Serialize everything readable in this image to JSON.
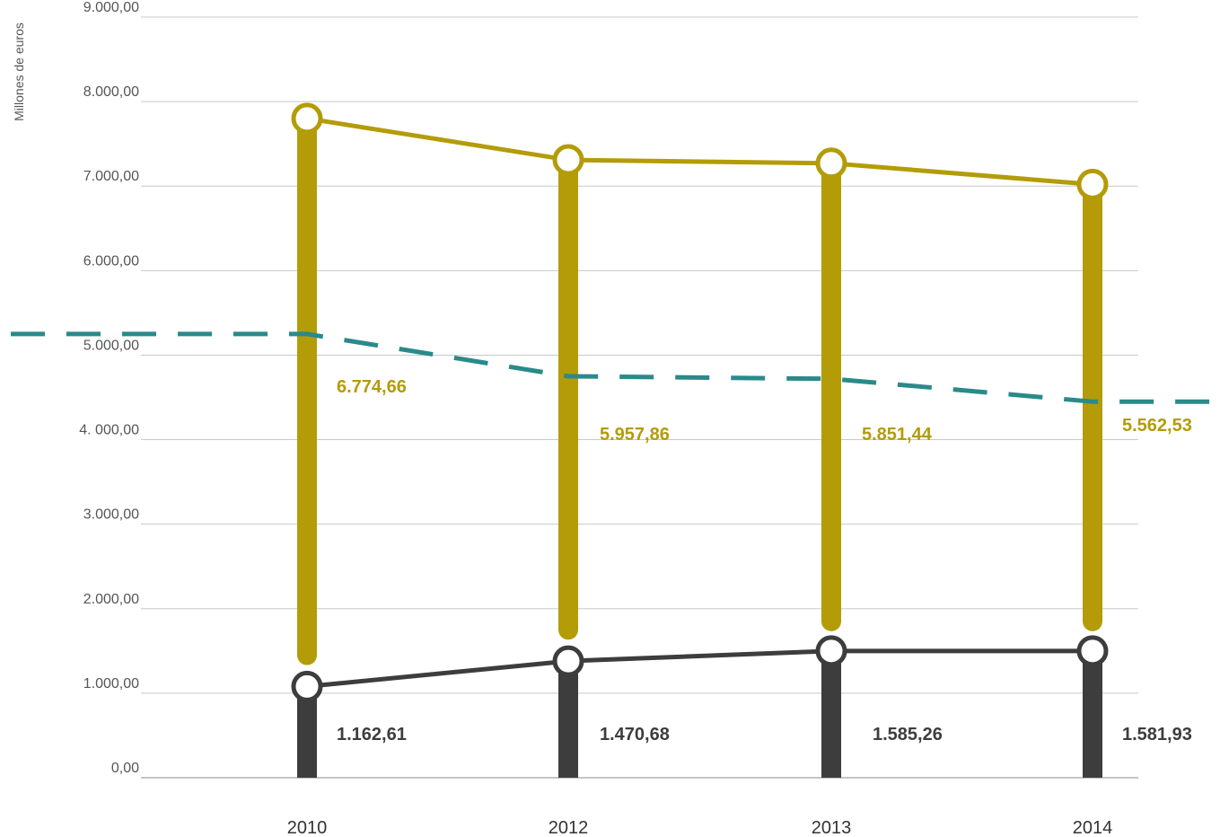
{
  "chart_data": {
    "type": "line",
    "ylabel": "Millones de euros",
    "ylim": [
      0,
      9000
    ],
    "yticks": [
      "0,00",
      "1.000,00",
      "2.000,00",
      "3.000,00",
      "4. 000,00",
      "5.000,00",
      "6.000,00",
      "7.000,00",
      "8.000,00",
      "9.000,00"
    ],
    "categories": [
      "2010",
      "2012",
      "2013",
      "2014"
    ],
    "grid": true,
    "series": [
      {
        "color": "#b39c08",
        "bar_start": [
          1450,
          1750,
          1850,
          1850
        ],
        "values": [
          7800,
          7310,
          7270,
          7020
        ],
        "data_labels": [
          "6.774,66",
          "5.957,86",
          "5.851,44",
          "5.562,53"
        ]
      },
      {
        "color": "#3d3d3d",
        "bar_start": [
          0,
          0,
          0,
          0
        ],
        "values": [
          1080,
          1380,
          1500,
          1500
        ],
        "data_labels": [
          "1.162,61",
          "1.470,68",
          "1.585,26",
          "1.581,93"
        ]
      },
      {
        "color": "#2a8a8a",
        "dashed": true,
        "values": [
          5250,
          4750,
          4720,
          4450
        ]
      }
    ]
  }
}
